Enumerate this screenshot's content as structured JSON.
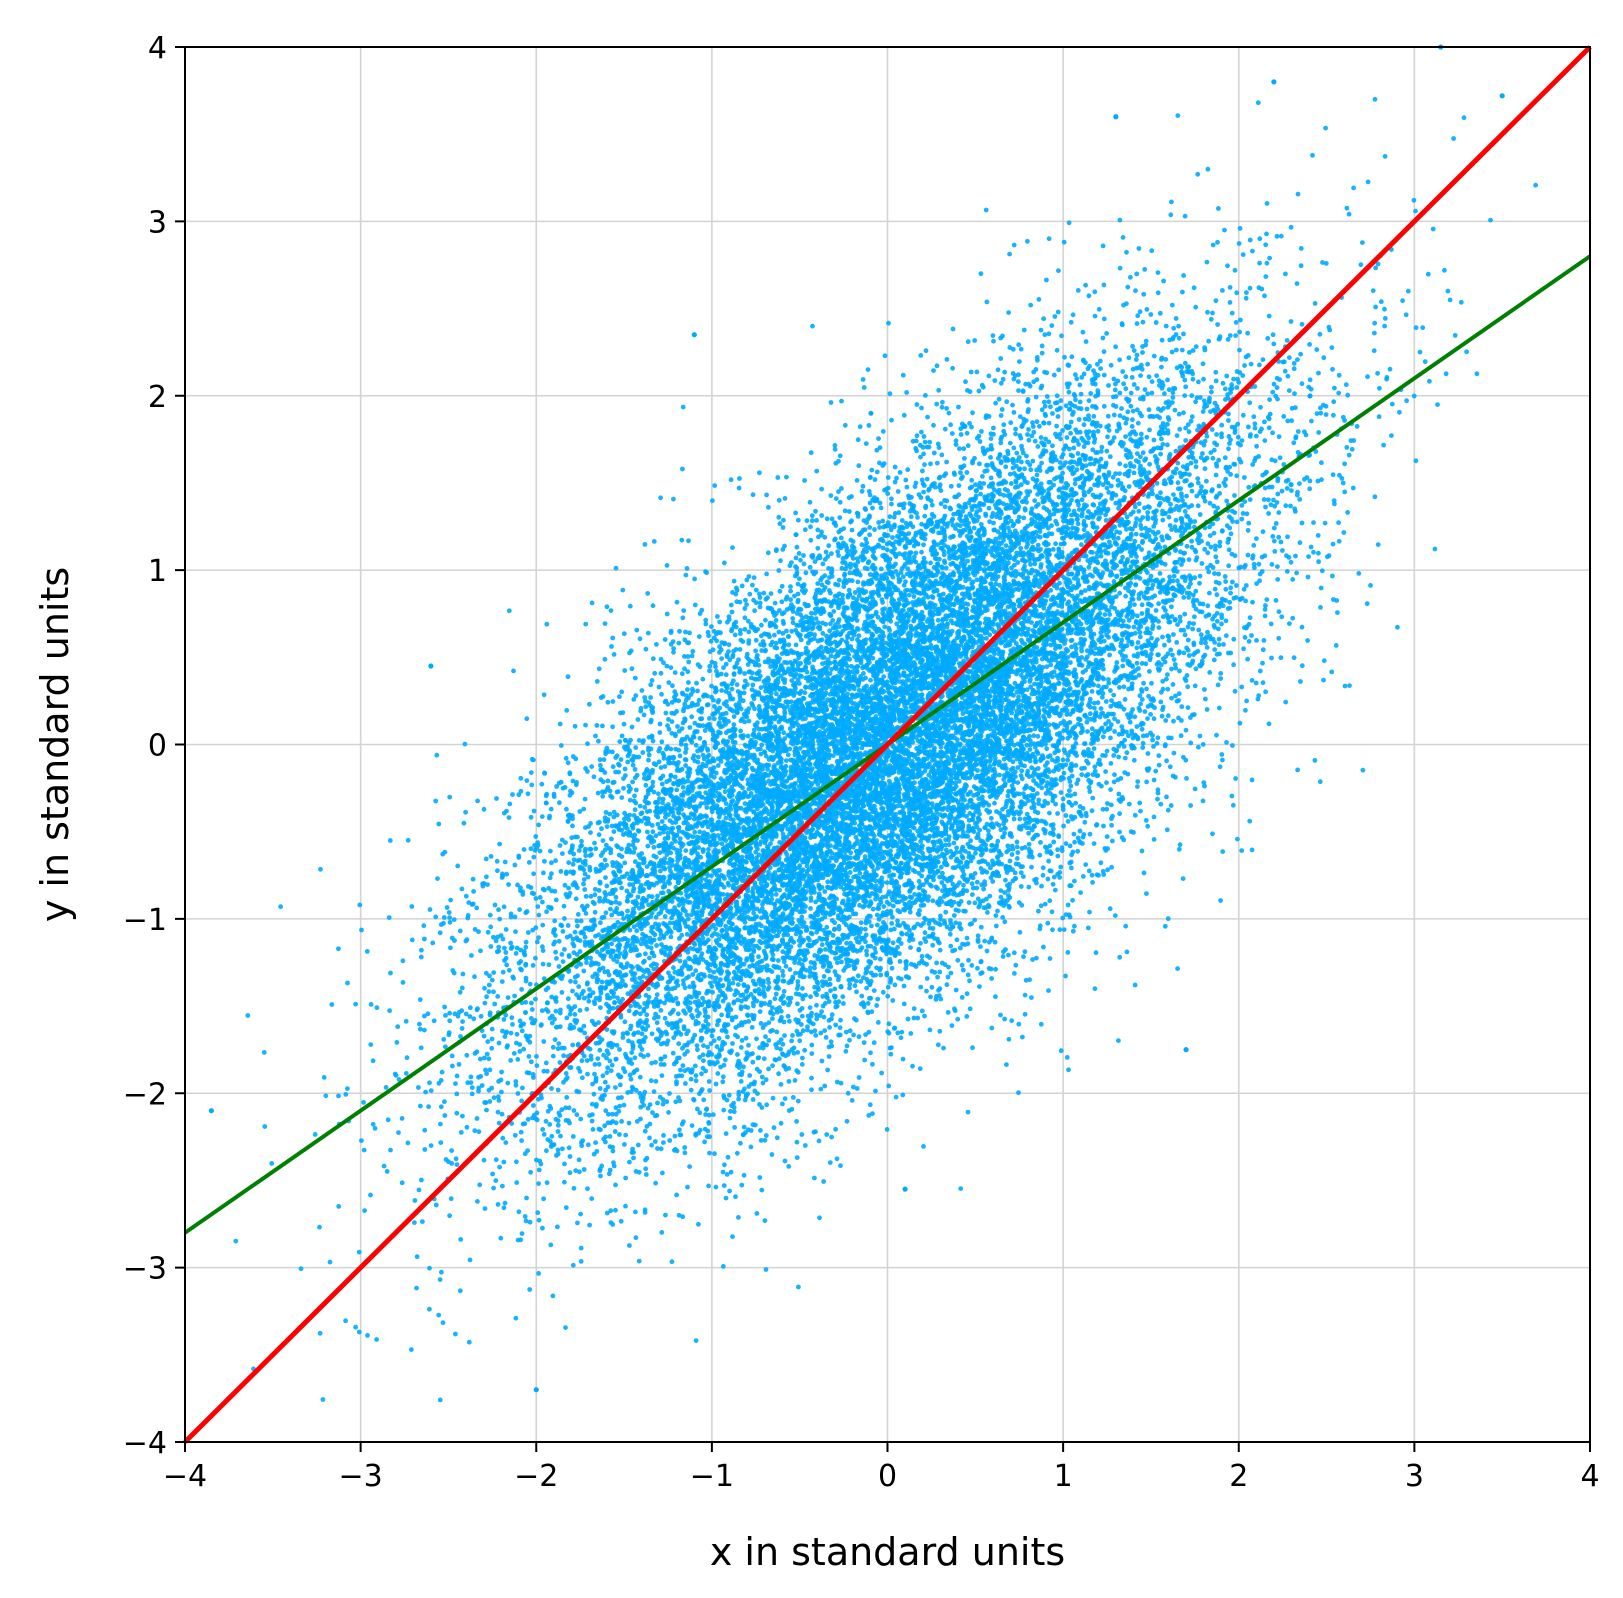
{
  "chart_data": {
    "type": "scatter",
    "title": "",
    "xlabel": "x in standard units",
    "ylabel": "y in standard units",
    "xlim": [
      -4,
      4
    ],
    "ylim": [
      -4,
      4
    ],
    "xticks": [
      -4,
      -3,
      -2,
      -1,
      0,
      1,
      2,
      3,
      4
    ],
    "yticks": [
      -4,
      -3,
      -2,
      -1,
      0,
      1,
      2,
      3,
      4
    ],
    "xtick_labels": [
      "−4",
      "−3",
      "−2",
      "−1",
      "0",
      "1",
      "2",
      "3",
      "4"
    ],
    "ytick_labels": [
      "−4",
      "−3",
      "−2",
      "−1",
      "0",
      "1",
      "2",
      "3",
      "4"
    ],
    "grid": true,
    "scatter": {
      "color": "#00aaff",
      "correlation": 0.7,
      "approx_points": 20000,
      "notable_points": [
        {
          "x": -1.1,
          "y": 2.35
        },
        {
          "x": 1.7,
          "y": -1.75
        },
        {
          "x": -2.0,
          "y": -3.7
        },
        {
          "x": 3.15,
          "y": 4.0
        },
        {
          "x": 3.5,
          "y": 3.72
        },
        {
          "x": 2.2,
          "y": 3.8
        },
        {
          "x": 1.3,
          "y": 3.6
        },
        {
          "x": -3.85,
          "y": -2.1
        },
        {
          "x": -2.6,
          "y": 0.45
        },
        {
          "x": 0.1,
          "y": -2.55
        }
      ]
    },
    "series": [
      {
        "type": "line",
        "color": "#ff0000",
        "slope": 1.0,
        "intercept": 0
      },
      {
        "type": "line",
        "color": "#008000",
        "slope": 0.7,
        "intercept": 0
      }
    ]
  }
}
